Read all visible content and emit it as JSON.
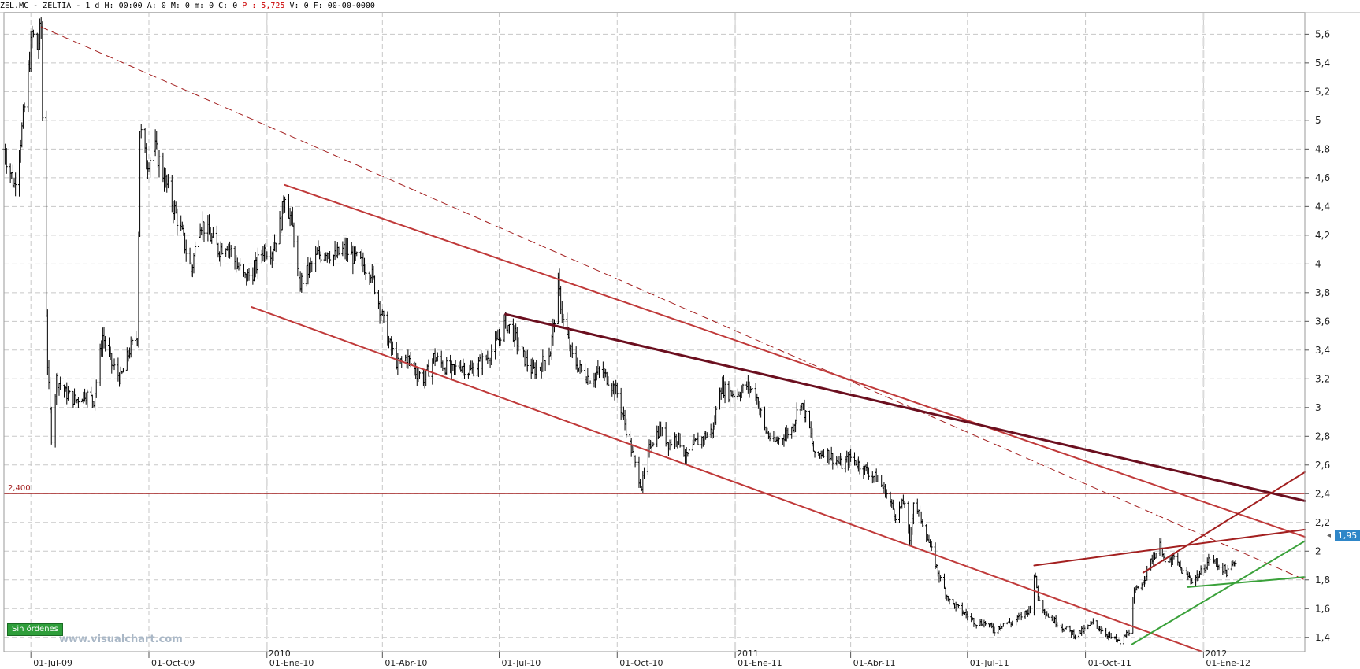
{
  "header": {
    "symbol": "ZEL.MC - ZELTIA -",
    "timeframe": "1 d",
    "h_label": "H:",
    "h_value": "00:00",
    "a_label": "A:",
    "a_value": "0",
    "m_label": "M:",
    "m_value": "0",
    "mm_label": "m:",
    "mm_value": "0",
    "c_label": "C:",
    "c_value": "0",
    "p_label": "P",
    "p_value": ": 5,725",
    "v_label": "V:",
    "v_value": "0",
    "f_label": "F:",
    "f_value": "00-00-0000",
    "colors": {
      "price": "#cc0000"
    }
  },
  "status_badge": "Sin órdenes",
  "watermark": "www.visualchart.com",
  "price_tag": "1,95",
  "horizontal_level_label": "2,400",
  "chart_data": {
    "type": "line",
    "subtype": "ohlc-bars",
    "title": "",
    "xlabel": "",
    "ylabel": "",
    "ylim": [
      1.3,
      5.75
    ],
    "yticks": [
      "1,4",
      "1,6",
      "1,8",
      "2",
      "2,2",
      "2,4",
      "2,6",
      "2,8",
      "3",
      "3,2",
      "3,4",
      "3,6",
      "3,8",
      "4",
      "4,2",
      "4,4",
      "4,6",
      "4,8",
      "5",
      "5,2",
      "5,4",
      "5,6"
    ],
    "ytick_values": [
      1.4,
      1.6,
      1.8,
      2.0,
      2.2,
      2.4,
      2.6,
      2.8,
      3.0,
      3.2,
      3.4,
      3.6,
      3.8,
      4.0,
      4.2,
      4.4,
      4.6,
      4.8,
      5.0,
      5.2,
      5.4,
      5.6
    ],
    "x_start": "2009-06-10",
    "x_end": "2012-03-20",
    "xticks": [
      {
        "date": "2009-07-01",
        "label": "01-Jul-09"
      },
      {
        "date": "2009-10-01",
        "label": "01-Oct-09"
      },
      {
        "date": "2010-01-01",
        "label": "01-Ene-10"
      },
      {
        "date": "2010-04-01",
        "label": "01-Abr-10"
      },
      {
        "date": "2010-07-01",
        "label": "01-Jul-10"
      },
      {
        "date": "2010-10-01",
        "label": "01-Oct-10"
      },
      {
        "date": "2011-01-01",
        "label": "01-Ene-11"
      },
      {
        "date": "2011-04-01",
        "label": "01-Abr-11"
      },
      {
        "date": "2011-07-01",
        "label": "01-Jul-11"
      },
      {
        "date": "2011-10-01",
        "label": "01-Oct-11"
      },
      {
        "date": "2012-01-01",
        "label": "01-Ene-12"
      }
    ],
    "year_markers": [
      {
        "date": "2010-01-01",
        "label": "2010"
      },
      {
        "date": "2011-01-01",
        "label": "2011"
      },
      {
        "date": "2012-01-01",
        "label": "2012"
      }
    ],
    "grid": true,
    "price_path": [
      [
        "2009-06-10",
        4.8
      ],
      [
        "2009-06-18",
        4.55
      ],
      [
        "2009-06-25",
        5.0
      ],
      [
        "2009-07-02",
        5.6
      ],
      [
        "2009-07-06",
        5.5
      ],
      [
        "2009-07-09",
        5.65
      ],
      [
        "2009-07-11",
        4.4
      ],
      [
        "2009-07-14",
        3.3
      ],
      [
        "2009-07-17",
        2.8
      ],
      [
        "2009-07-21",
        3.2
      ],
      [
        "2009-07-28",
        3.1
      ],
      [
        "2009-08-05",
        3.05
      ],
      [
        "2009-08-12",
        3.1
      ],
      [
        "2009-08-19",
        3.05
      ],
      [
        "2009-08-26",
        3.5
      ],
      [
        "2009-09-02",
        3.3
      ],
      [
        "2009-09-09",
        3.2
      ],
      [
        "2009-09-16",
        3.4
      ],
      [
        "2009-09-22",
        3.5
      ],
      [
        "2009-09-24",
        4.95
      ],
      [
        "2009-09-29",
        4.7
      ],
      [
        "2009-10-06",
        4.8
      ],
      [
        "2009-10-13",
        4.6
      ],
      [
        "2009-10-20",
        4.4
      ],
      [
        "2009-10-27",
        4.2
      ],
      [
        "2009-11-03",
        3.95
      ],
      [
        "2009-11-10",
        4.3
      ],
      [
        "2009-11-17",
        4.2
      ],
      [
        "2009-11-24",
        4.1
      ],
      [
        "2009-12-01",
        4.15
      ],
      [
        "2009-12-08",
        4.0
      ],
      [
        "2009-12-15",
        3.9
      ],
      [
        "2009-12-22",
        3.95
      ],
      [
        "2009-12-29",
        4.1
      ],
      [
        "2010-01-05",
        4.1
      ],
      [
        "2010-01-12",
        4.3
      ],
      [
        "2010-01-15",
        4.5
      ],
      [
        "2010-01-22",
        4.2
      ],
      [
        "2010-01-26",
        3.85
      ],
      [
        "2010-02-02",
        3.95
      ],
      [
        "2010-02-09",
        4.05
      ],
      [
        "2010-02-16",
        4.1
      ],
      [
        "2010-02-23",
        4.05
      ],
      [
        "2010-03-02",
        4.1
      ],
      [
        "2010-03-09",
        4.05
      ],
      [
        "2010-03-16",
        4.0
      ],
      [
        "2010-03-23",
        3.95
      ],
      [
        "2010-03-30",
        3.7
      ],
      [
        "2010-04-06",
        3.45
      ],
      [
        "2010-04-13",
        3.3
      ],
      [
        "2010-04-20",
        3.35
      ],
      [
        "2010-04-27",
        3.25
      ],
      [
        "2010-05-04",
        3.2
      ],
      [
        "2010-05-11",
        3.35
      ],
      [
        "2010-05-18",
        3.3
      ],
      [
        "2010-05-25",
        3.25
      ],
      [
        "2010-06-01",
        3.3
      ],
      [
        "2010-06-08",
        3.25
      ],
      [
        "2010-06-15",
        3.3
      ],
      [
        "2010-06-22",
        3.35
      ],
      [
        "2010-06-29",
        3.45
      ],
      [
        "2010-07-06",
        3.6
      ],
      [
        "2010-07-13",
        3.5
      ],
      [
        "2010-07-20",
        3.35
      ],
      [
        "2010-07-27",
        3.25
      ],
      [
        "2010-08-03",
        3.3
      ],
      [
        "2010-08-10",
        3.4
      ],
      [
        "2010-08-16",
        3.85
      ],
      [
        "2010-08-20",
        3.6
      ],
      [
        "2010-08-27",
        3.35
      ],
      [
        "2010-09-03",
        3.25
      ],
      [
        "2010-09-10",
        3.2
      ],
      [
        "2010-09-17",
        3.25
      ],
      [
        "2010-09-24",
        3.2
      ],
      [
        "2010-10-01",
        3.1
      ],
      [
        "2010-10-08",
        2.85
      ],
      [
        "2010-10-15",
        2.6
      ],
      [
        "2010-10-20",
        2.45
      ],
      [
        "2010-10-27",
        2.75
      ],
      [
        "2010-11-03",
        2.85
      ],
      [
        "2010-11-10",
        2.75
      ],
      [
        "2010-11-17",
        2.8
      ],
      [
        "2010-11-24",
        2.65
      ],
      [
        "2010-12-01",
        2.75
      ],
      [
        "2010-12-08",
        2.8
      ],
      [
        "2010-12-15",
        2.85
      ],
      [
        "2010-12-20",
        3.15
      ],
      [
        "2010-12-27",
        3.1
      ],
      [
        "2011-01-03",
        3.1
      ],
      [
        "2011-01-10",
        3.15
      ],
      [
        "2011-01-17",
        3.1
      ],
      [
        "2011-01-24",
        2.85
      ],
      [
        "2011-01-31",
        2.75
      ],
      [
        "2011-02-07",
        2.8
      ],
      [
        "2011-02-14",
        2.85
      ],
      [
        "2011-02-21",
        3.05
      ],
      [
        "2011-02-28",
        2.85
      ],
      [
        "2011-03-04",
        2.65
      ],
      [
        "2011-03-11",
        2.7
      ],
      [
        "2011-03-18",
        2.65
      ],
      [
        "2011-03-25",
        2.6
      ],
      [
        "2011-04-01",
        2.65
      ],
      [
        "2011-04-08",
        2.6
      ],
      [
        "2011-04-15",
        2.55
      ],
      [
        "2011-04-22",
        2.5
      ],
      [
        "2011-04-29",
        2.4
      ],
      [
        "2011-05-06",
        2.25
      ],
      [
        "2011-05-13",
        2.35
      ],
      [
        "2011-05-17",
        2.05
      ],
      [
        "2011-05-20",
        2.35
      ],
      [
        "2011-05-27",
        2.2
      ],
      [
        "2011-06-03",
        2.0
      ],
      [
        "2011-06-10",
        1.8
      ],
      [
        "2011-06-17",
        1.65
      ],
      [
        "2011-06-24",
        1.6
      ],
      [
        "2011-07-01",
        1.55
      ],
      [
        "2011-07-08",
        1.5
      ],
      [
        "2011-07-15",
        1.5
      ],
      [
        "2011-07-22",
        1.45
      ],
      [
        "2011-07-29",
        1.5
      ],
      [
        "2011-08-05",
        1.5
      ],
      [
        "2011-08-12",
        1.55
      ],
      [
        "2011-08-19",
        1.6
      ],
      [
        "2011-08-22",
        1.85
      ],
      [
        "2011-08-26",
        1.65
      ],
      [
        "2011-09-02",
        1.55
      ],
      [
        "2011-09-09",
        1.5
      ],
      [
        "2011-09-16",
        1.45
      ],
      [
        "2011-09-23",
        1.42
      ],
      [
        "2011-09-30",
        1.45
      ],
      [
        "2011-10-07",
        1.5
      ],
      [
        "2011-10-14",
        1.45
      ],
      [
        "2011-10-21",
        1.4
      ],
      [
        "2011-10-28",
        1.36
      ],
      [
        "2011-11-04",
        1.45
      ],
      [
        "2011-11-08",
        1.7
      ],
      [
        "2011-11-15",
        1.8
      ],
      [
        "2011-11-22",
        1.95
      ],
      [
        "2011-11-29",
        2.05
      ],
      [
        "2011-12-02",
        1.9
      ],
      [
        "2011-12-09",
        1.95
      ],
      [
        "2011-12-16",
        1.85
      ],
      [
        "2011-12-23",
        1.8
      ],
      [
        "2011-12-30",
        1.85
      ],
      [
        "2012-01-06",
        1.95
      ],
      [
        "2012-01-13",
        1.9
      ],
      [
        "2012-01-20",
        1.85
      ],
      [
        "2012-01-27",
        1.95
      ]
    ],
    "horizontal_levels": [
      {
        "value": 2.4,
        "label": "2,400",
        "color": "#a32020"
      }
    ],
    "trendlines": [
      {
        "from": [
          "2009-07-09",
          5.65
        ],
        "to": [
          "2012-03-20",
          1.8
        ],
        "color": "#a32020",
        "style": "dashed",
        "width": 1
      },
      {
        "from": [
          "2010-01-15",
          4.55
        ],
        "to": [
          "2012-03-20",
          2.1
        ],
        "color": "#c03a3a",
        "style": "solid",
        "width": 2
      },
      {
        "from": [
          "2009-12-20",
          3.7
        ],
        "to": [
          "2011-12-31",
          1.3
        ],
        "color": "#c03a3a",
        "style": "solid",
        "width": 2
      },
      {
        "from": [
          "2010-07-06",
          3.65
        ],
        "to": [
          "2012-03-20",
          2.35
        ],
        "color": "#6b0f1f",
        "style": "solid",
        "width": 3
      },
      {
        "from": [
          "2011-08-22",
          1.9
        ],
        "to": [
          "2012-03-20",
          2.15
        ],
        "color": "#a32020",
        "style": "solid",
        "width": 2
      },
      {
        "from": [
          "2011-11-15",
          1.85
        ],
        "to": [
          "2012-03-20",
          2.55
        ],
        "color": "#a32020",
        "style": "solid",
        "width": 2
      },
      {
        "from": [
          "2011-11-06",
          1.35
        ],
        "to": [
          "2012-03-20",
          2.07
        ],
        "color": "#3aa13a",
        "style": "solid",
        "width": 2
      },
      {
        "from": [
          "2011-12-20",
          1.75
        ],
        "to": [
          "2012-03-20",
          1.82
        ],
        "color": "#3aa13a",
        "style": "solid",
        "width": 2
      }
    ],
    "colors": {
      "bars": "#000000",
      "grid": "#c8c8c8"
    }
  }
}
